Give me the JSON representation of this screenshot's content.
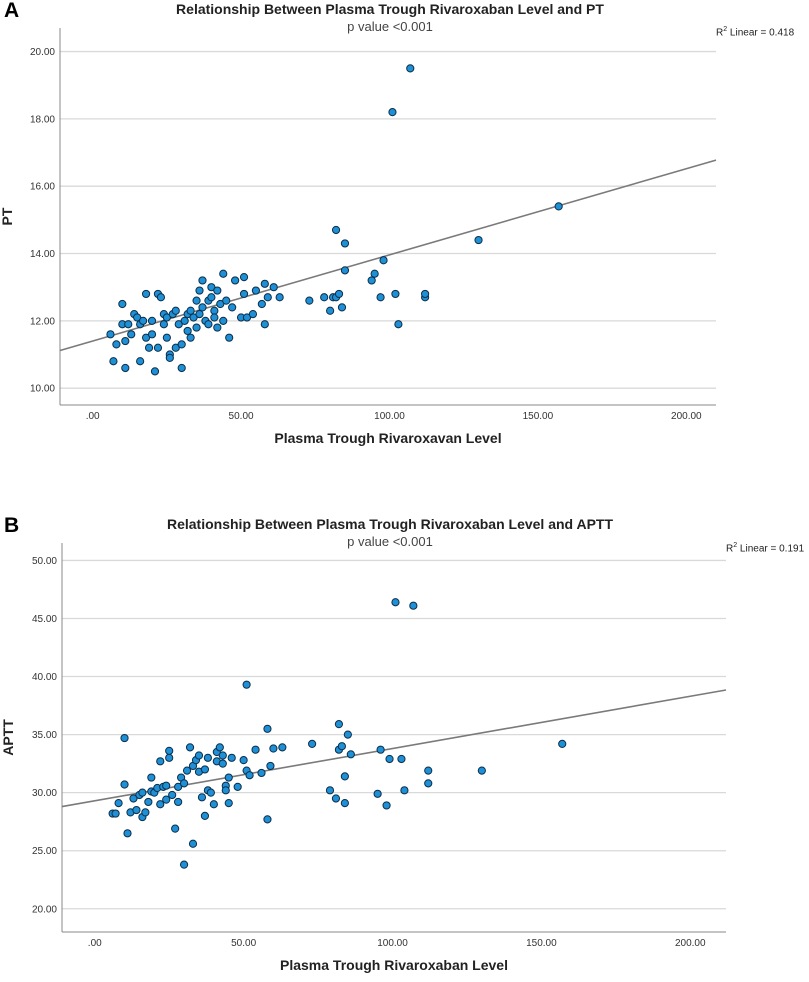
{
  "chart_data": [
    {
      "type": "scatter",
      "panel": "A",
      "title": "Relationship Between Plasma Trough Rivaroxaban Level and PT",
      "subtitle": "p value <0.001",
      "xlabel": "Plasma Trough Rivaroxavan Level",
      "ylabel": "PT",
      "r2_label": "Linear = 0.418",
      "r2_prefix": "R",
      "r2_sup": "2",
      "xlim": [
        -11,
        210
      ],
      "ylim": [
        9.5,
        20.7
      ],
      "xticks": [
        0,
        50,
        100,
        150,
        200
      ],
      "xtick_labels": [
        ".00",
        "50.00",
        "100.00",
        "150.00",
        "200.00"
      ],
      "yticks": [
        10,
        12,
        14,
        16,
        18,
        20
      ],
      "ytick_labels": [
        "10.00",
        "12.00",
        "14.00",
        "16.00",
        "18.00",
        "20.00"
      ],
      "fit_line": {
        "intercept": 11.4,
        "slope": 0.0256
      },
      "points": [
        [
          6,
          11.6
        ],
        [
          7,
          10.8
        ],
        [
          8,
          11.3
        ],
        [
          10,
          12.5
        ],
        [
          10,
          11.9
        ],
        [
          11,
          10.6
        ],
        [
          11,
          11.4
        ],
        [
          12,
          11.9
        ],
        [
          13,
          11.6
        ],
        [
          14,
          12.2
        ],
        [
          15,
          12.1
        ],
        [
          16,
          11.9
        ],
        [
          16,
          10.8
        ],
        [
          17,
          12.0
        ],
        [
          18,
          11.5
        ],
        [
          18,
          12.8
        ],
        [
          19,
          11.2
        ],
        [
          20,
          12.0
        ],
        [
          20,
          11.6
        ],
        [
          21,
          10.5
        ],
        [
          22,
          12.8
        ],
        [
          22,
          11.2
        ],
        [
          23,
          12.7
        ],
        [
          24,
          11.9
        ],
        [
          24,
          12.2
        ],
        [
          25,
          12.1
        ],
        [
          25,
          11.5
        ],
        [
          26,
          11.0
        ],
        [
          26,
          10.9
        ],
        [
          27,
          12.2
        ],
        [
          28,
          11.2
        ],
        [
          28,
          12.3
        ],
        [
          29,
          11.9
        ],
        [
          30,
          10.6
        ],
        [
          30,
          11.3
        ],
        [
          31,
          12.0
        ],
        [
          32,
          12.2
        ],
        [
          32,
          11.7
        ],
        [
          33,
          12.3
        ],
        [
          33,
          11.5
        ],
        [
          34,
          12.1
        ],
        [
          35,
          12.6
        ],
        [
          35,
          11.8
        ],
        [
          36,
          12.9
        ],
        [
          36,
          12.2
        ],
        [
          37,
          13.2
        ],
        [
          37,
          12.4
        ],
        [
          38,
          12.0
        ],
        [
          39,
          12.6
        ],
        [
          39,
          11.9
        ],
        [
          40,
          12.7
        ],
        [
          40,
          13.0
        ],
        [
          41,
          12.3
        ],
        [
          41,
          12.1
        ],
        [
          42,
          11.8
        ],
        [
          42,
          12.9
        ],
        [
          43,
          12.5
        ],
        [
          44,
          12.0
        ],
        [
          44,
          13.4
        ],
        [
          45,
          12.6
        ],
        [
          46,
          11.5
        ],
        [
          47,
          12.4
        ],
        [
          48,
          13.2
        ],
        [
          50,
          12.1
        ],
        [
          51,
          12.8
        ],
        [
          51,
          13.3
        ],
        [
          52,
          12.1
        ],
        [
          54,
          12.2
        ],
        [
          55,
          12.9
        ],
        [
          57,
          12.5
        ],
        [
          58,
          13.1
        ],
        [
          58,
          11.9
        ],
        [
          59,
          12.7
        ],
        [
          61,
          13.0
        ],
        [
          63,
          12.7
        ],
        [
          73,
          12.6
        ],
        [
          78,
          12.7
        ],
        [
          80,
          12.3
        ],
        [
          81,
          12.7
        ],
        [
          82,
          14.7
        ],
        [
          82,
          12.7
        ],
        [
          83,
          12.8
        ],
        [
          84,
          12.4
        ],
        [
          85,
          13.5
        ],
        [
          85,
          14.3
        ],
        [
          94,
          13.2
        ],
        [
          95,
          13.4
        ],
        [
          97,
          12.7
        ],
        [
          98,
          13.8
        ],
        [
          101,
          18.2
        ],
        [
          102,
          12.8
        ],
        [
          103,
          11.9
        ],
        [
          107,
          19.5
        ],
        [
          112,
          12.7
        ],
        [
          112,
          12.8
        ],
        [
          130,
          14.4
        ],
        [
          157,
          15.4
        ]
      ]
    },
    {
      "type": "scatter",
      "panel": "B",
      "title": "Relationship Between Plasma Trough Rivaroxaban Level and APTT",
      "subtitle": "p value <0.001",
      "xlabel": "Plasma Trough Rivaroxaban Level",
      "ylabel": "APTT",
      "r2_label": "Linear = 0.191",
      "r2_prefix": "R",
      "r2_sup": "2",
      "xlim": [
        -11,
        212
      ],
      "ylim": [
        18,
        51.5
      ],
      "xticks": [
        0,
        50,
        100,
        150,
        200
      ],
      "xtick_labels": [
        ".00",
        "50.00",
        "100.00",
        "150.00",
        "200.00"
      ],
      "yticks": [
        20,
        25,
        30,
        35,
        40,
        45,
        50
      ],
      "ytick_labels": [
        "20.00",
        "25.00",
        "30.00",
        "35.00",
        "40.00",
        "45.00",
        "50.00"
      ],
      "fit_line": {
        "intercept": 29.3,
        "slope": 0.045
      },
      "points": [
        [
          6,
          28.2
        ],
        [
          7,
          28.2
        ],
        [
          8,
          29.1
        ],
        [
          10,
          30.7
        ],
        [
          10,
          34.7
        ],
        [
          11,
          26.5
        ],
        [
          12,
          28.3
        ],
        [
          13,
          29.5
        ],
        [
          14,
          28.5
        ],
        [
          15,
          29.8
        ],
        [
          16,
          30.0
        ],
        [
          16,
          27.9
        ],
        [
          17,
          28.3
        ],
        [
          18,
          29.2
        ],
        [
          19,
          30.1
        ],
        [
          19,
          31.3
        ],
        [
          20,
          30.0
        ],
        [
          21,
          30.4
        ],
        [
          22,
          32.7
        ],
        [
          22,
          29.0
        ],
        [
          23,
          30.5
        ],
        [
          24,
          30.6
        ],
        [
          24,
          29.4
        ],
        [
          25,
          33.0
        ],
        [
          25,
          33.6
        ],
        [
          26,
          29.8
        ],
        [
          27,
          26.9
        ],
        [
          28,
          30.5
        ],
        [
          28,
          29.2
        ],
        [
          29,
          31.3
        ],
        [
          30,
          23.8
        ],
        [
          30,
          30.8
        ],
        [
          31,
          31.9
        ],
        [
          32,
          33.9
        ],
        [
          33,
          32.3
        ],
        [
          33,
          25.6
        ],
        [
          34,
          32.8
        ],
        [
          35,
          33.2
        ],
        [
          35,
          31.8
        ],
        [
          36,
          29.6
        ],
        [
          37,
          32.0
        ],
        [
          37,
          28.0
        ],
        [
          38,
          30.2
        ],
        [
          38,
          33.0
        ],
        [
          39,
          30.0
        ],
        [
          40,
          29.0
        ],
        [
          41,
          32.7
        ],
        [
          41,
          33.5
        ],
        [
          42,
          33.9
        ],
        [
          43,
          33.2
        ],
        [
          43,
          32.5
        ],
        [
          44,
          30.6
        ],
        [
          44,
          30.2
        ],
        [
          45,
          31.3
        ],
        [
          45,
          29.1
        ],
        [
          46,
          33.0
        ],
        [
          48,
          30.5
        ],
        [
          50,
          32.8
        ],
        [
          51,
          31.9
        ],
        [
          51,
          39.3
        ],
        [
          52,
          31.5
        ],
        [
          54,
          33.7
        ],
        [
          56,
          31.7
        ],
        [
          58,
          35.5
        ],
        [
          58,
          27.7
        ],
        [
          59,
          32.3
        ],
        [
          60,
          33.8
        ],
        [
          63,
          33.9
        ],
        [
          73,
          34.2
        ],
        [
          79,
          30.2
        ],
        [
          81,
          29.5
        ],
        [
          82,
          33.7
        ],
        [
          82,
          35.9
        ],
        [
          83,
          34.0
        ],
        [
          84,
          31.4
        ],
        [
          84,
          29.1
        ],
        [
          85,
          35.0
        ],
        [
          86,
          33.3
        ],
        [
          95,
          29.9
        ],
        [
          96,
          33.7
        ],
        [
          98,
          28.9
        ],
        [
          99,
          32.9
        ],
        [
          101,
          46.4
        ],
        [
          103,
          32.9
        ],
        [
          104,
          30.2
        ],
        [
          107,
          46.1
        ],
        [
          112,
          30.8
        ],
        [
          112,
          31.9
        ],
        [
          130,
          31.9
        ],
        [
          157,
          34.2
        ]
      ]
    }
  ]
}
